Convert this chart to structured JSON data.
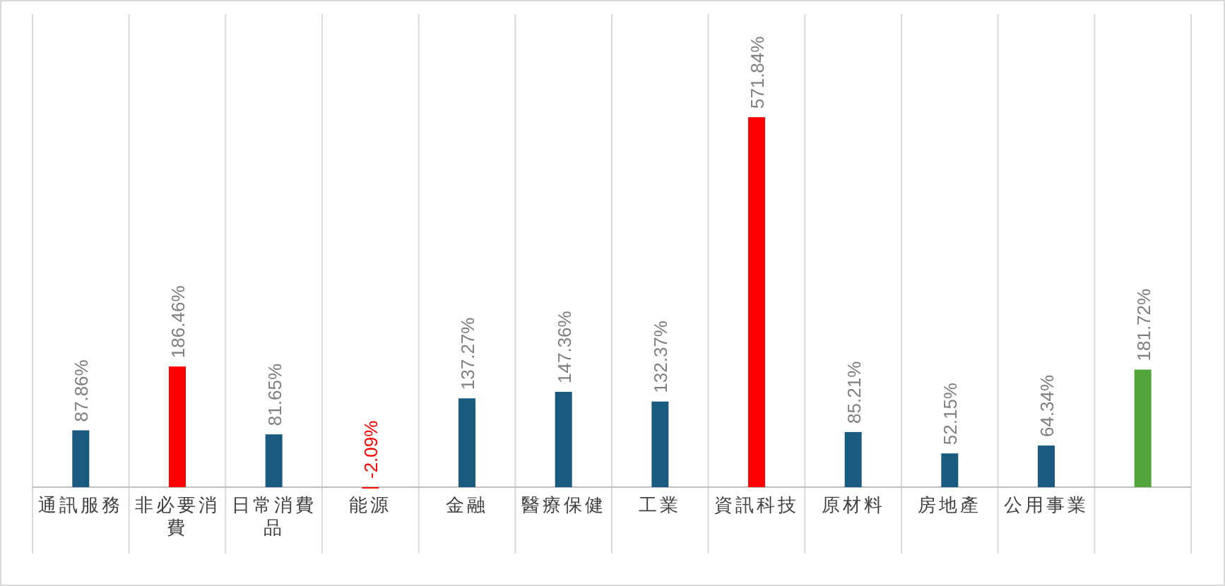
{
  "chart_data": {
    "type": "bar",
    "categories": [
      "通訊服務",
      "非必要消費",
      "日常消費品",
      "能源",
      "金融",
      "醫療保健",
      "工業",
      "資訊科技",
      "原材料",
      "房地產",
      "公用事業",
      null
    ],
    "values": [
      87.86,
      186.46,
      81.65,
      -2.09,
      137.27,
      147.36,
      132.37,
      571.84,
      85.21,
      52.15,
      64.34,
      181.72
    ],
    "colors": [
      "#1a5a7e",
      "#ff0000",
      "#1a5a7e",
      "#ff0000",
      "#1a5a7e",
      "#1a5a7e",
      "#1a5a7e",
      "#ff0000",
      "#1a5a7e",
      "#1a5a7e",
      "#1a5a7e",
      "#52a53a"
    ],
    "value_labels": [
      "87.86%",
      "186.46%",
      "81.65%",
      "-2.09%",
      "137.27%",
      "147.36%",
      "132.37%",
      "571.84%",
      "85.21%",
      "52.15%",
      "64.34%",
      "181.72%"
    ]
  }
}
